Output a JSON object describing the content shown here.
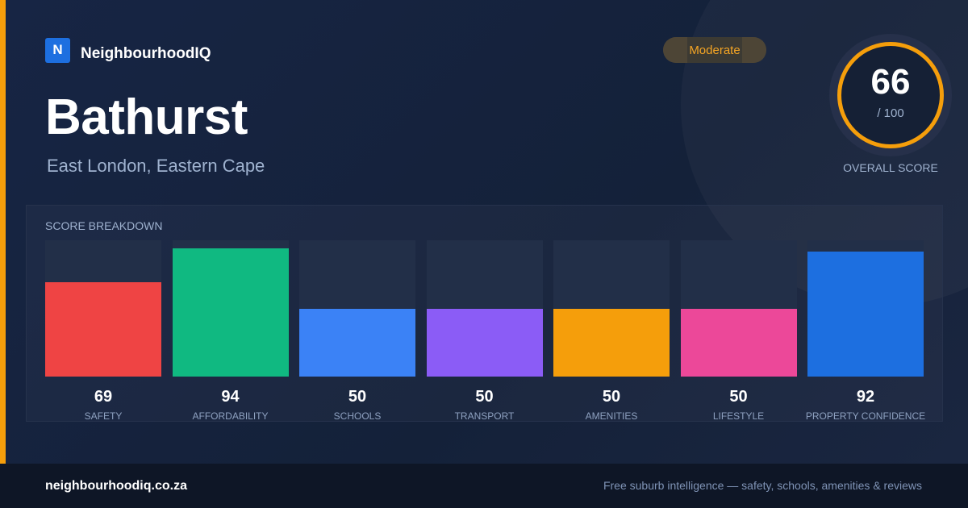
{
  "brand": {
    "logo_letter": "N",
    "name": "NeighbourhoodIQ"
  },
  "suburb": {
    "name": "Bathurst",
    "region": "East London, Eastern Cape"
  },
  "rating_badge": "Moderate",
  "overall": {
    "score": "66",
    "max": "/ 100",
    "label": "OVERALL SCORE"
  },
  "breakdown_title": "SCORE BREAKDOWN",
  "colors": {
    "accent": "#f59e0b",
    "safety": "#ef4444",
    "affordability": "#10b981",
    "schools": "#3b82f6",
    "transport": "#8b5cf6",
    "amenities": "#f59e0b",
    "lifestyle": "#ec4899",
    "property_confidence": "#1d6fe0"
  },
  "chart_data": {
    "type": "bar",
    "title": "SCORE BREAKDOWN",
    "ylim": [
      0,
      100
    ],
    "categories": [
      "SAFETY",
      "AFFORDABILITY",
      "SCHOOLS",
      "TRANSPORT",
      "AMENITIES",
      "LIFESTYLE",
      "PROPERTY CONFIDENCE"
    ],
    "values": [
      69,
      94,
      50,
      50,
      50,
      50,
      92
    ],
    "colors": [
      "#ef4444",
      "#10b981",
      "#3b82f6",
      "#8b5cf6",
      "#f59e0b",
      "#ec4899",
      "#1d6fe0"
    ]
  },
  "footer": {
    "url": "neighbourhoodiq.co.za",
    "tagline": "Free suburb intelligence — safety, schools, amenities & reviews"
  }
}
